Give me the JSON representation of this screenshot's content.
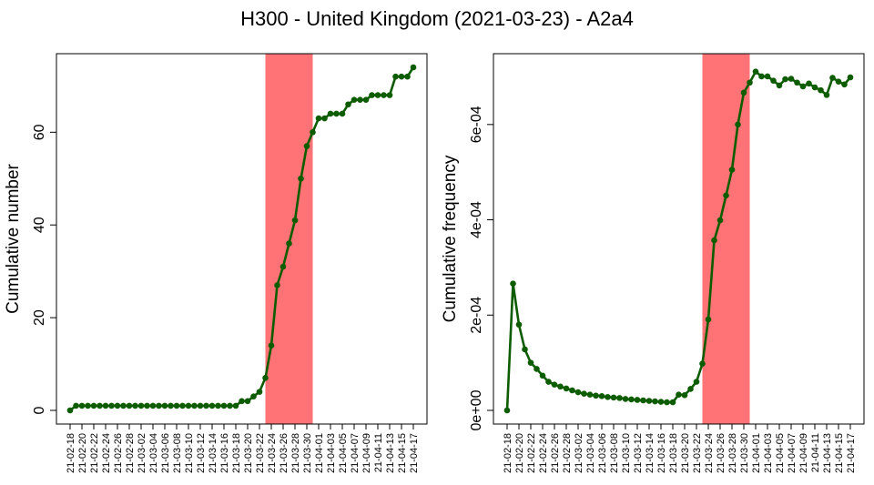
{
  "figure": {
    "title": "H300 - United Kingdom (2021-03-23) - A2a4"
  },
  "chart_data": [
    {
      "type": "line",
      "ylabel": "Cumulative number",
      "xlabel": "",
      "ylim": [
        0,
        74
      ],
      "yticks": [
        "0",
        "20",
        "40",
        "60"
      ],
      "ytick_values": [
        0,
        20,
        40,
        60
      ],
      "highlight": {
        "from": "21-03-23",
        "to": "21-03-31",
        "color": "#ff7276"
      },
      "series_color": "#0d5c00",
      "x": [
        "21-02-18",
        "21-02-19",
        "21-02-20",
        "21-02-21",
        "21-02-22",
        "21-02-23",
        "21-02-24",
        "21-02-25",
        "21-02-26",
        "21-02-27",
        "21-02-28",
        "21-03-01",
        "21-03-02",
        "21-03-03",
        "21-03-04",
        "21-03-05",
        "21-03-06",
        "21-03-07",
        "21-03-08",
        "21-03-09",
        "21-03-10",
        "21-03-11",
        "21-03-12",
        "21-03-13",
        "21-03-14",
        "21-03-15",
        "21-03-16",
        "21-03-17",
        "21-03-18",
        "21-03-19",
        "21-03-20",
        "21-03-21",
        "21-03-22",
        "21-03-23",
        "21-03-24",
        "21-03-25",
        "21-03-26",
        "21-03-27",
        "21-03-28",
        "21-03-29",
        "21-03-30",
        "21-03-31",
        "21-04-01",
        "21-04-02",
        "21-04-03",
        "21-04-04",
        "21-04-05",
        "21-04-06",
        "21-04-07",
        "21-04-08",
        "21-04-09",
        "21-04-10",
        "21-04-11",
        "21-04-12",
        "21-04-13",
        "21-04-14",
        "21-04-15",
        "21-04-16",
        "21-04-17"
      ],
      "y": [
        0,
        1,
        1,
        1,
        1,
        1,
        1,
        1,
        1,
        1,
        1,
        1,
        1,
        1,
        1,
        1,
        1,
        1,
        1,
        1,
        1,
        1,
        1,
        1,
        1,
        1,
        1,
        1,
        1,
        2,
        2,
        3,
        4,
        7,
        14,
        27,
        31,
        36,
        41,
        50,
        57,
        60,
        63,
        63,
        64,
        64,
        64,
        66,
        67,
        67,
        67,
        68,
        68,
        68,
        68,
        72,
        72,
        72,
        74
      ]
    },
    {
      "type": "line",
      "ylabel": "Cumulative frequency",
      "xlabel": "",
      "ylim": [
        0,
        0.00072
      ],
      "yticks": [
        "0e+00",
        "2e-04",
        "4e-04",
        "6e-04"
      ],
      "ytick_values": [
        0,
        0.0002,
        0.0004,
        0.0006
      ],
      "highlight": {
        "from": "21-03-23",
        "to": "21-03-31",
        "color": "#ff7276"
      },
      "series_color": "#0d5c00",
      "x": [
        "21-02-18",
        "21-02-19",
        "21-02-20",
        "21-02-21",
        "21-02-22",
        "21-02-23",
        "21-02-24",
        "21-02-25",
        "21-02-26",
        "21-02-27",
        "21-02-28",
        "21-03-01",
        "21-03-02",
        "21-03-03",
        "21-03-04",
        "21-03-05",
        "21-03-06",
        "21-03-07",
        "21-03-08",
        "21-03-09",
        "21-03-10",
        "21-03-11",
        "21-03-12",
        "21-03-13",
        "21-03-14",
        "21-03-15",
        "21-03-16",
        "21-03-17",
        "21-03-18",
        "21-03-19",
        "21-03-20",
        "21-03-21",
        "21-03-22",
        "21-03-23",
        "21-03-24",
        "21-03-25",
        "21-03-26",
        "21-03-27",
        "21-03-28",
        "21-03-29",
        "21-03-30",
        "21-03-31",
        "21-04-01",
        "21-04-02",
        "21-04-03",
        "21-04-04",
        "21-04-05",
        "21-04-06",
        "21-04-07",
        "21-04-08",
        "21-04-09",
        "21-04-10",
        "21-04-11",
        "21-04-12",
        "21-04-13",
        "21-04-14",
        "21-04-15",
        "21-04-16",
        "21-04-17"
      ],
      "y": [
        0,
        0.000266,
        0.00018,
        0.000128,
        0.0001,
        8.7e-05,
        7.3e-05,
        6e-05,
        5.4e-05,
        5e-05,
        4.6e-05,
        4.2e-05,
        3.8e-05,
        3.5e-05,
        3.3e-05,
        3.1e-05,
        3e-05,
        2.8e-05,
        2.7e-05,
        2.6e-05,
        2.4e-05,
        2.3e-05,
        2.2e-05,
        2.1e-05,
        2e-05,
        1.9e-05,
        1.8e-05,
        1.7e-05,
        1.7e-05,
        3.3e-05,
        3.2e-05,
        4.5e-05,
        6e-05,
        9.8e-05,
        0.000191,
        0.000357,
        0.000399,
        0.000451,
        0.000505,
        0.0006,
        0.000667,
        0.000688,
        0.000711,
        0.000701,
        0.000701,
        0.000692,
        0.000682,
        0.000695,
        0.000696,
        0.000688,
        0.00068,
        0.000686,
        0.000678,
        0.000672,
        0.000662,
        0.000698,
        0.00069,
        0.000684,
        0.000699
      ]
    }
  ]
}
